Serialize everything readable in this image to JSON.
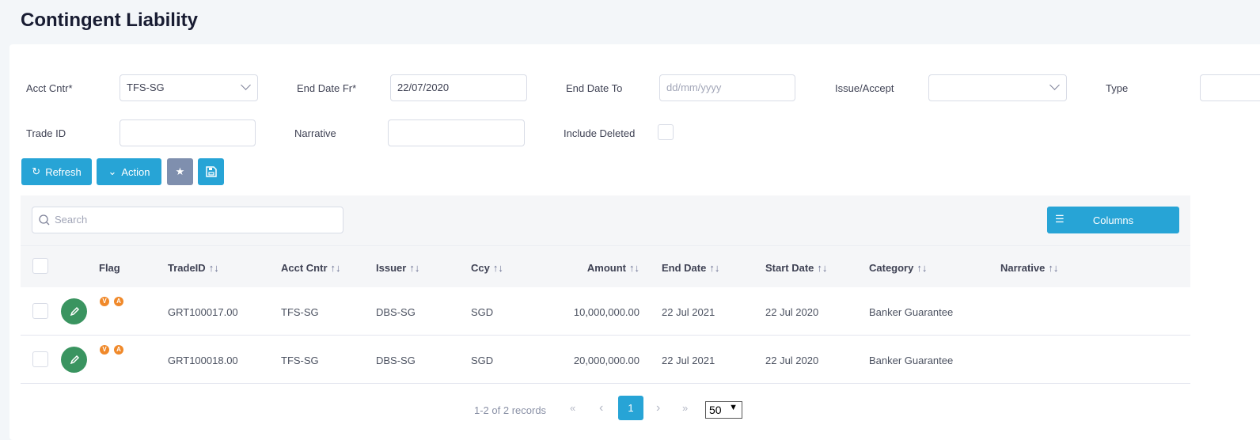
{
  "page": {
    "title": "Contingent Liability"
  },
  "filters": {
    "acct_cntr": {
      "label": "Acct Cntr*",
      "value": "TFS-SG"
    },
    "end_date_fr": {
      "label": "End Date Fr*",
      "value": "22/07/2020"
    },
    "end_date_to": {
      "label": "End Date To",
      "placeholder": "dd/mm/yyyy"
    },
    "issue_accept": {
      "label": "Issue/Accept",
      "value": ""
    },
    "type": {
      "label": "Type",
      "value": ""
    },
    "trade_id": {
      "label": "Trade ID",
      "value": ""
    },
    "narrative": {
      "label": "Narrative",
      "value": ""
    },
    "include_deleted": {
      "label": "Include Deleted",
      "checked": false
    }
  },
  "toolbar": {
    "refresh": "Refresh",
    "action": "Action",
    "columns": "Columns",
    "search_placeholder": "Search"
  },
  "table": {
    "columns": [
      "Flag",
      "TradeID",
      "Acct Cntr",
      "Issuer",
      "Ccy",
      "Amount",
      "End Date",
      "Start Date",
      "Category",
      "Narrative"
    ],
    "sort_icon": "↑↓",
    "rows": [
      {
        "flags": [
          "V",
          "A"
        ],
        "trade_id": "GRT100017.00",
        "acct_cntr": "TFS-SG",
        "issuer": "DBS-SG",
        "ccy": "SGD",
        "amount": "10,000,000.00",
        "end_date": "22 Jul 2021",
        "start_date": "22 Jul 2020",
        "category": "Banker Guarantee",
        "narrative": ""
      },
      {
        "flags": [
          "V",
          "A"
        ],
        "trade_id": "GRT100018.00",
        "acct_cntr": "TFS-SG",
        "issuer": "DBS-SG",
        "ccy": "SGD",
        "amount": "20,000,000.00",
        "end_date": "22 Jul 2021",
        "start_date": "22 Jul 2020",
        "category": "Banker Guarantee",
        "narrative": ""
      }
    ]
  },
  "pagination": {
    "summary": "1-2 of 2 records",
    "current_page": "1",
    "page_size": "50",
    "first": "«",
    "prev": "‹",
    "next": "›",
    "last": "»"
  },
  "colors": {
    "primary": "#27a4d6",
    "edit": "#3a9460",
    "flag": "#f0892a",
    "favorite": "#7f8fae"
  }
}
